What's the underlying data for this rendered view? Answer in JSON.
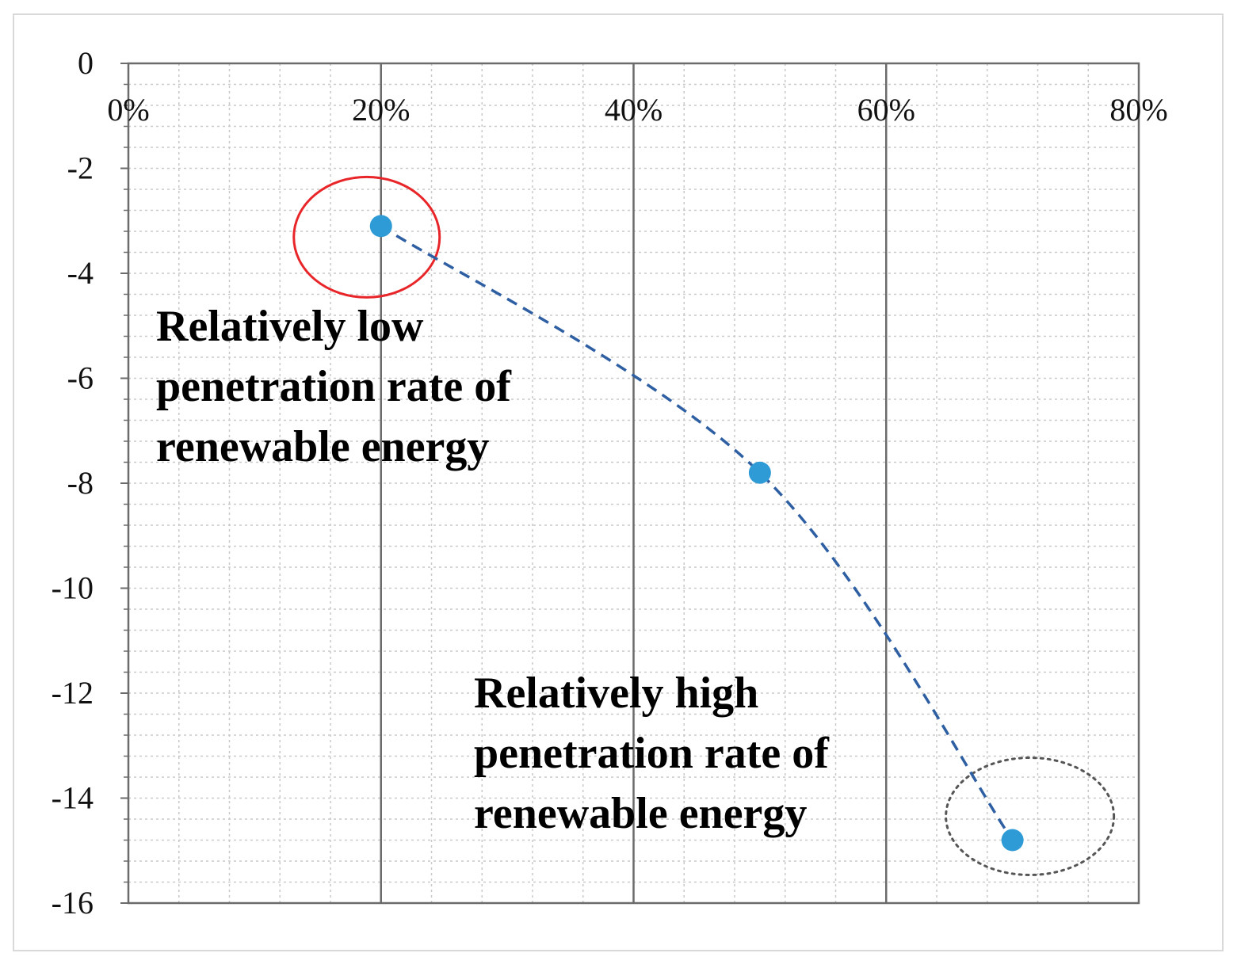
{
  "chart_data": {
    "type": "scatter",
    "title": "",
    "xlabel": "",
    "ylabel": "",
    "x_format": "percent",
    "xlim": [
      0,
      0.8
    ],
    "ylim": [
      -16,
      0
    ],
    "x_ticks": [
      0,
      0.2,
      0.4,
      0.6,
      0.8
    ],
    "x_tick_labels": [
      "0%",
      "20%",
      "40%",
      "60%",
      "80%"
    ],
    "y_ticks": [
      0,
      -2,
      -4,
      -6,
      -8,
      -10,
      -12,
      -14,
      -16
    ],
    "y_tick_labels": [
      "0",
      "-2",
      "-4",
      "-6",
      "-8",
      "-10",
      "-12",
      "-14",
      "-16"
    ],
    "x_axis_position": "top",
    "grid": true,
    "series": [
      {
        "name": "series-1",
        "marker_color": "#2f9bd6",
        "line_color": "#2e5fa3",
        "line_style": "dashed",
        "points": [
          {
            "x": 0.2,
            "y": -3.1
          },
          {
            "x": 0.5,
            "y": -7.8
          },
          {
            "x": 0.7,
            "y": -14.8
          }
        ]
      }
    ],
    "annotations": [
      {
        "id": "low",
        "lines": [
          "Relatively low",
          "penetration rate of",
          "renewable energy"
        ],
        "highlight_point": 0,
        "highlight_style": "solid-red-ellipse",
        "highlight_color": "#e8262a"
      },
      {
        "id": "high",
        "lines": [
          "Relatively high",
          "penetration rate of",
          "renewable energy"
        ],
        "highlight_point": 2,
        "highlight_style": "dotted-gray-ellipse",
        "highlight_color": "#555555"
      }
    ]
  }
}
